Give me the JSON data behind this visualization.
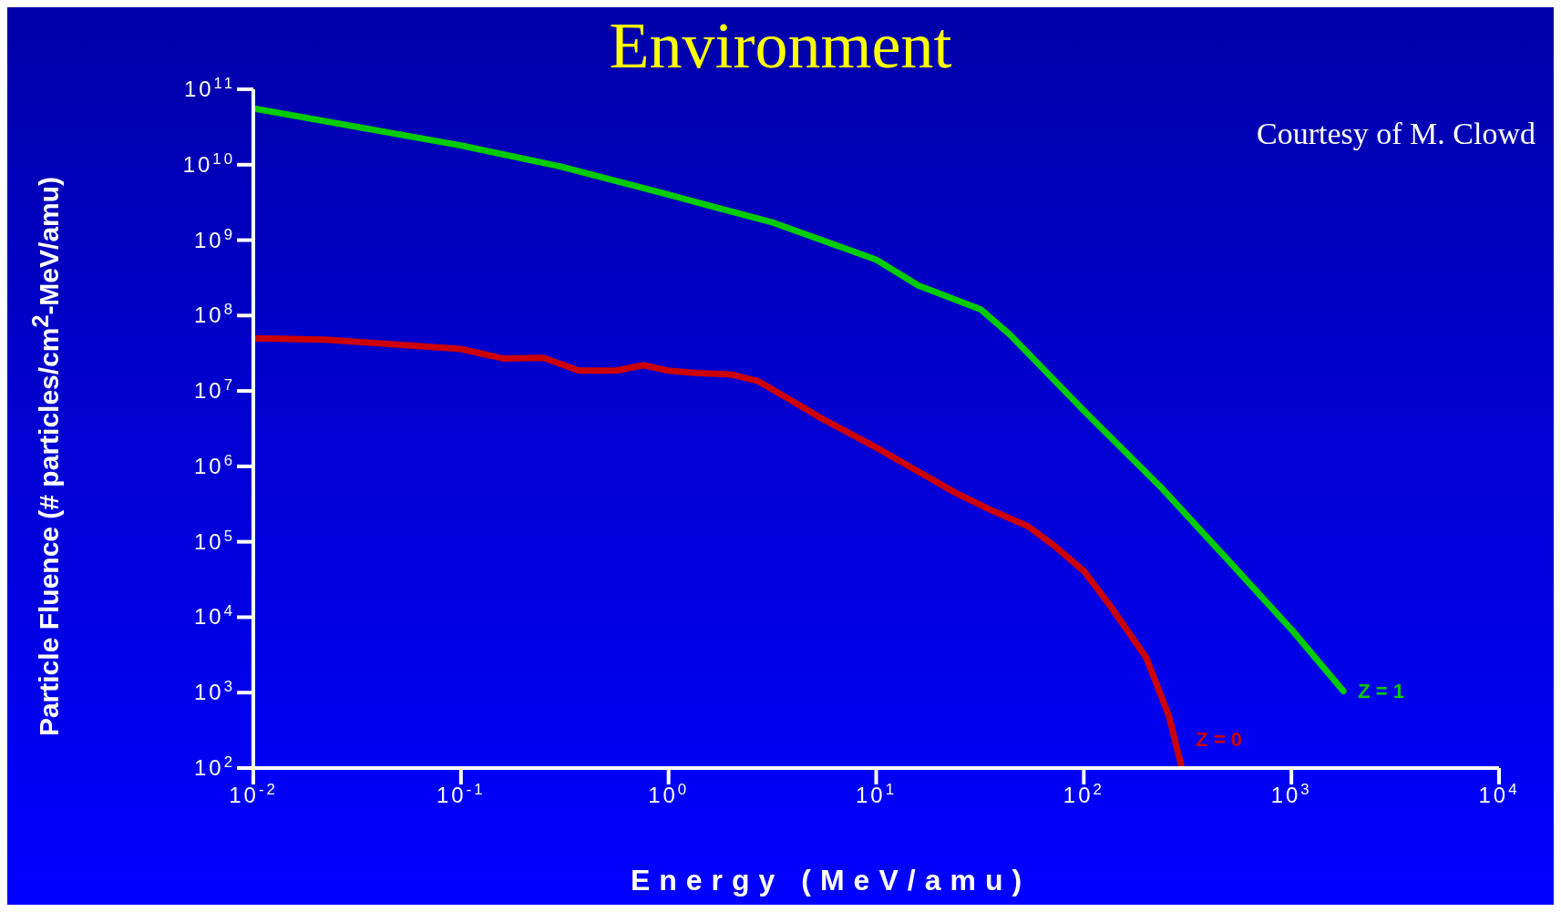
{
  "chart_data": {
    "type": "line",
    "title": "Environment",
    "xlabel": "Energy (MeV/amu)",
    "ylabel": "Particle Fluence (# particles/cm$^{2}$-MeV/amu)",
    "annotations": [
      "Courtesy of M. Clowd"
    ],
    "log": "xy",
    "marker": "none",
    "line_style": "solid",
    "xlim": [
      0.01,
      10000
    ],
    "ylim": [
      100,
      100000000000
    ],
    "xticks": [
      {
        "value": 0.01,
        "label": "10$^{-2}$"
      },
      {
        "value": 0.1,
        "label": "10$^{-1}$"
      },
      {
        "value": 1,
        "label": "10$^{0}$"
      },
      {
        "value": 10,
        "label": "10$^{1}$"
      },
      {
        "value": 100,
        "label": "10$^{2}$"
      },
      {
        "value": 1000,
        "label": "10$^{3}$"
      },
      {
        "value": 10000,
        "label": "10$^{4}$"
      }
    ],
    "yticks": [
      {
        "value": 100,
        "label": "10$^{2}$"
      },
      {
        "value": 1000,
        "label": "10$^{3}$"
      },
      {
        "value": 10000,
        "label": "10$^{4}$"
      },
      {
        "value": 100000,
        "label": "10$^{5}$"
      },
      {
        "value": 1000000,
        "label": "10$^{6}$"
      },
      {
        "value": 10000000,
        "label": "10$^{7}$"
      },
      {
        "value": 100000000,
        "label": "10$^{8}$"
      },
      {
        "value": 1000000000,
        "label": "10$^{9}$"
      },
      {
        "value": 10000000000,
        "label": "10$^{10}$"
      },
      {
        "value": 100000000000,
        "label": "10$^{11}$"
      }
    ],
    "series": [
      {
        "name": "Z = 1",
        "color": "#00cc00",
        "x": [
          0.01,
          0.1,
          0.3,
          1,
          3.2,
          10,
          16,
          32,
          44,
          100,
          240,
          490,
          1000,
          1780
        ],
        "values": [
          56000000000,
          18000000000,
          9500000000,
          4000000000,
          1700000000,
          550000000,
          250000000,
          120000000,
          56000000,
          5500000,
          500000,
          59000,
          6900,
          1050
        ]
      },
      {
        "name": "Z = 0",
        "color": "#cc0000",
        "x": [
          0.01,
          0.022,
          0.1,
          0.16,
          0.25,
          0.37,
          0.56,
          0.76,
          1,
          1.32,
          2,
          2.7,
          4,
          5.4,
          10,
          16,
          24,
          35,
          54,
          72,
          100,
          132,
          200,
          257,
          295
        ],
        "values": [
          50000000,
          48000000,
          36000000,
          27000000,
          27500000,
          18600000,
          18600000,
          22000000,
          18600000,
          17400000,
          16600000,
          13500000,
          7200000,
          4400000,
          1780000,
          850000,
          450000,
          270000,
          160000,
          89000,
          41000,
          15000,
          2900,
          490,
          107
        ]
      }
    ]
  }
}
